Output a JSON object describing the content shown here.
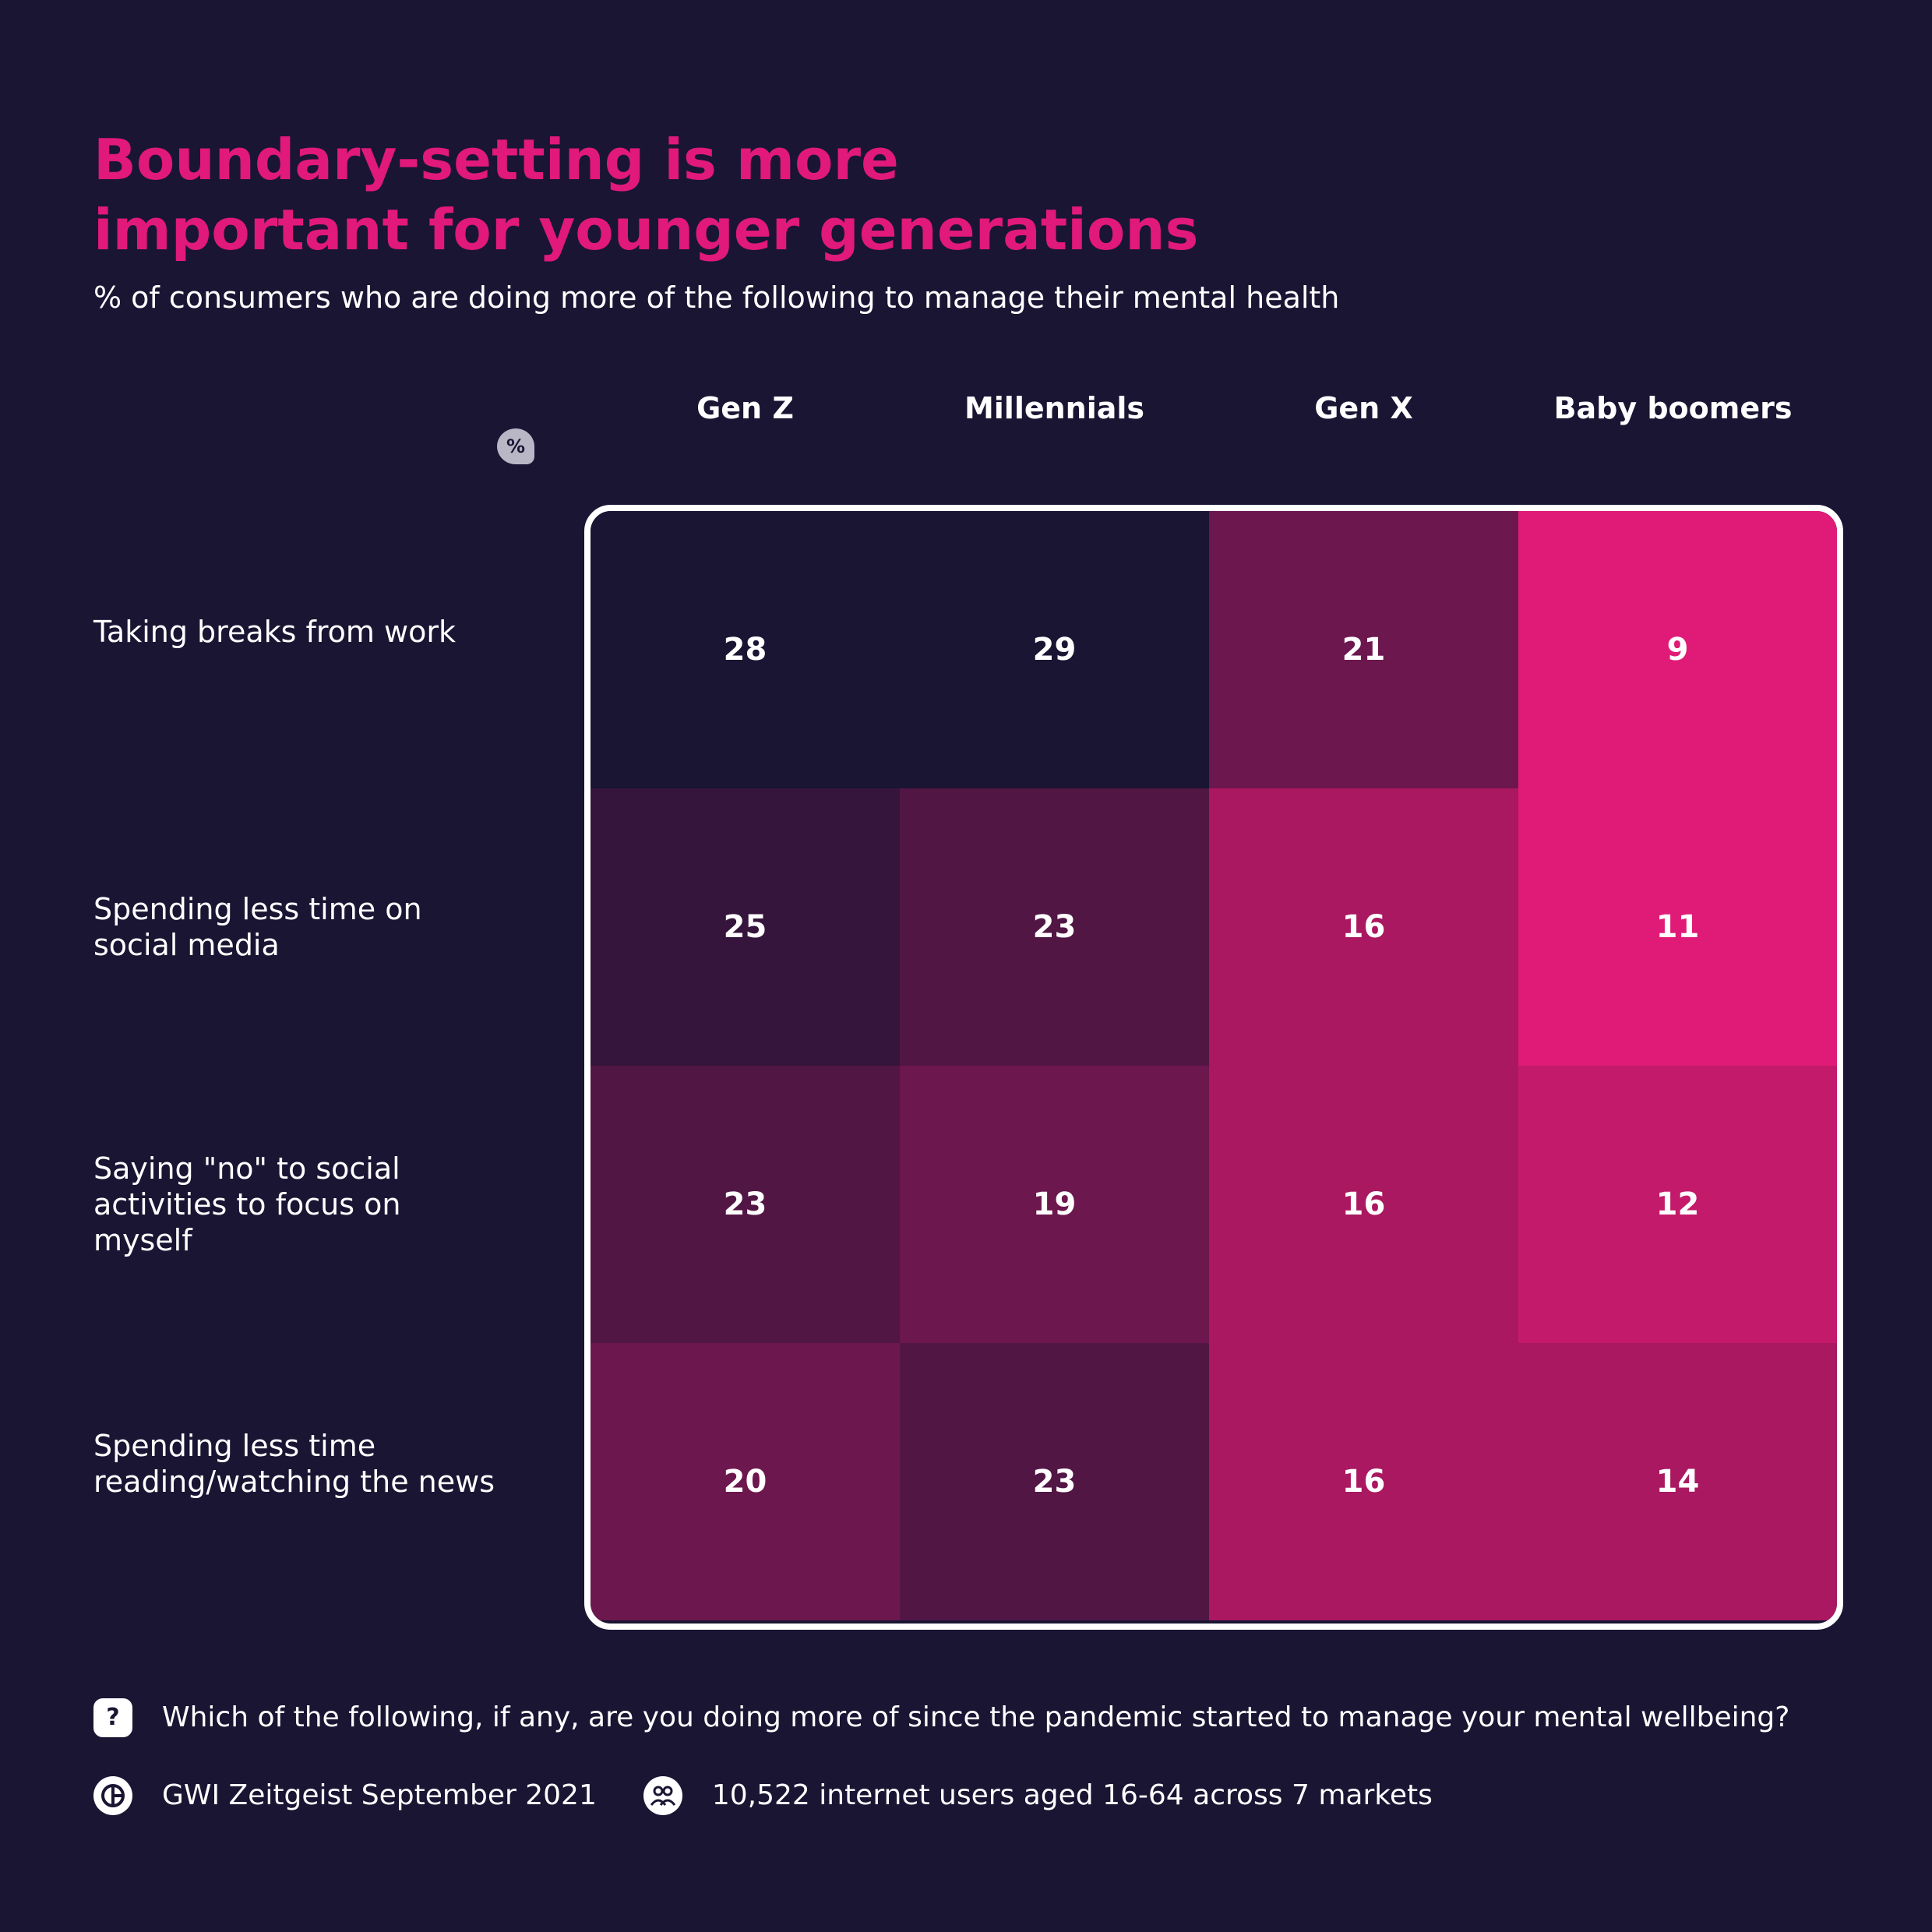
{
  "title_lines": [
    "Boundary-setting is more",
    "important for younger generations"
  ],
  "subtitle": "% of consumers who are doing more of the following to manage their mental health",
  "badge": "%",
  "colors": {
    "background": "#191533",
    "accent": "#e0197a",
    "cells": [
      [
        "#191533",
        "#191533",
        "#6c174e",
        "#e01b77"
      ],
      [
        "#35153b",
        "#521645",
        "#a91860",
        "#e01b77"
      ],
      [
        "#521645",
        "#6c174e",
        "#a91860",
        "#c41a6b"
      ],
      [
        "#6c174e",
        "#521645",
        "#a91860",
        "#a91860"
      ]
    ]
  },
  "chart_data": {
    "type": "heatmap",
    "title": "Boundary-setting is more important for younger generations",
    "subtitle": "% of consumers who are doing more of the following to manage their mental health",
    "columns": [
      "Gen Z",
      "Millennials",
      "Gen X",
      "Baby boomers"
    ],
    "rows": [
      "Taking breaks from work",
      "Spending less time on social media",
      "Saying \"no\" to social activities to focus on myself",
      "Spending less time reading/watching the news"
    ],
    "values": [
      [
        28,
        29,
        21,
        9
      ],
      [
        25,
        23,
        16,
        11
      ],
      [
        23,
        19,
        16,
        12
      ],
      [
        20,
        23,
        16,
        14
      ]
    ]
  },
  "footer": {
    "question_icon": "question-icon",
    "question": "Which of the following, if any, are you doing more of since the pandemic started to manage your mental wellbeing?",
    "source_icon": "gwi-logo-icon",
    "source": "GWI Zeitgeist September 2021",
    "sample_icon": "people-icon",
    "sample": "10,522 internet users aged 16-64 across 7 markets"
  }
}
